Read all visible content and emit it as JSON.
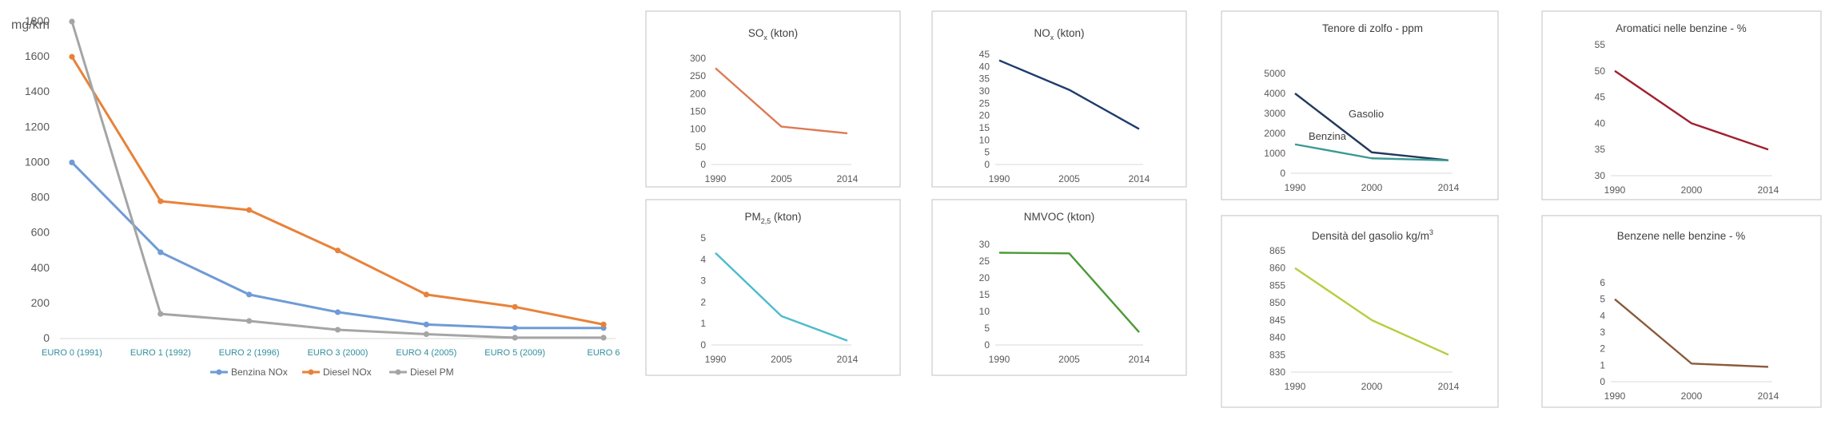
{
  "charts": [
    {
      "id": "euro-limits",
      "type": "line",
      "ylabel": "mg/km",
      "categories": [
        "EURO 0 (1991)",
        "EURO 1 (1992)",
        "EURO 2 (1996)",
        "EURO 3 (2000)",
        "EURO 4 (2005)",
        "EURO 5 (2009)",
        "EURO 6"
      ],
      "ylim": [
        0,
        1800
      ],
      "yticks": [
        0,
        200,
        400,
        600,
        800,
        1000,
        1200,
        1400,
        1600,
        1800
      ],
      "grid": false,
      "legend": "bottom",
      "series": [
        {
          "name": "Benzina NOx",
          "color": "#6f9bd6",
          "values": [
            1000,
            490,
            250,
            150,
            80,
            60,
            60
          ]
        },
        {
          "name": "Diesel NOx",
          "color": "#e8823a",
          "values": [
            1600,
            780,
            730,
            500,
            250,
            180,
            80
          ]
        },
        {
          "name": "Diesel PM",
          "color": "#a5a5a5",
          "values": [
            1800,
            140,
            100,
            50,
            25,
            5,
            5
          ]
        }
      ]
    },
    {
      "id": "sox",
      "type": "line",
      "title": "SO",
      "title_sub": "x",
      "title_suffix": " (kton)",
      "categories": [
        "1990",
        "2005",
        "2014"
      ],
      "ylim": [
        0,
        300
      ],
      "yticks": [
        0,
        50,
        100,
        150,
        200,
        250,
        300
      ],
      "series": [
        {
          "name": "",
          "color": "#dd7a55",
          "values": [
            272,
            107,
            88
          ]
        }
      ]
    },
    {
      "id": "nox",
      "type": "line",
      "title": "NO",
      "title_sub": "x",
      "title_suffix": " (kton)",
      "categories": [
        "1990",
        "2005",
        "2014"
      ],
      "ylim": [
        0,
        45
      ],
      "yticks": [
        0,
        5,
        10,
        15,
        20,
        25,
        30,
        35,
        40,
        45
      ],
      "series": [
        {
          "name": "",
          "color": "#1f3c6e",
          "values": [
            42.5,
            30.5,
            14.5
          ]
        }
      ]
    },
    {
      "id": "zolfo",
      "type": "line",
      "title": "Tenore di zolfo - ppm",
      "categories": [
        "1990",
        "2000",
        "2014"
      ],
      "ylim": [
        0,
        5000
      ],
      "yticks": [
        0,
        1000,
        2000,
        3000,
        4000,
        5000
      ],
      "series": [
        {
          "name": "Gasolio",
          "color": "#23395d",
          "values": [
            4000,
            1050,
            650
          ]
        },
        {
          "name": "Benzina",
          "color": "#3a9a94",
          "values": [
            1450,
            750,
            650
          ]
        }
      ]
    },
    {
      "id": "aromatici",
      "type": "line",
      "title": "Aromatici nelle benzine - %",
      "categories": [
        "1990",
        "2000",
        "2014"
      ],
      "ylim": [
        30,
        55
      ],
      "yticks": [
        30,
        35,
        40,
        45,
        50,
        55
      ],
      "series": [
        {
          "name": "",
          "color": "#a0202e",
          "values": [
            50,
            40,
            35
          ]
        }
      ]
    },
    {
      "id": "pm",
      "type": "line",
      "title": "PM",
      "title_sub": "2,5",
      "title_suffix": " (kton)",
      "categories": [
        "1990",
        "2005",
        "2014"
      ],
      "ylim": [
        0,
        5
      ],
      "yticks": [
        0,
        1,
        2,
        3,
        4,
        5
      ],
      "series": [
        {
          "name": "",
          "color": "#4bbccb",
          "values": [
            4.3,
            1.35,
            0.2
          ]
        }
      ]
    },
    {
      "id": "nmvoc",
      "type": "line",
      "title": "NMVOC (kton)",
      "categories": [
        "1990",
        "2005",
        "2014"
      ],
      "ylim": [
        0,
        30
      ],
      "yticks": [
        0,
        5,
        10,
        15,
        20,
        25,
        30
      ],
      "series": [
        {
          "name": "",
          "color": "#4a9a35",
          "values": [
            27.5,
            27.3,
            3.8
          ]
        }
      ]
    },
    {
      "id": "densita",
      "type": "line",
      "title": "Densità del gasolio kg/m",
      "title_sup": "3",
      "categories": [
        "1990",
        "2000",
        "2014"
      ],
      "ylim": [
        830,
        865
      ],
      "yticks": [
        830,
        835,
        840,
        845,
        850,
        855,
        860,
        865
      ],
      "series": [
        {
          "name": "",
          "color": "#b6ce3e",
          "values": [
            860,
            845,
            835
          ]
        }
      ]
    },
    {
      "id": "benzene",
      "type": "line",
      "title": "Benzene nelle benzine - %",
      "categories": [
        "1990",
        "2000",
        "2014"
      ],
      "ylim": [
        0,
        6
      ],
      "yticks": [
        0,
        1,
        2,
        3,
        4,
        5,
        6
      ],
      "series": [
        {
          "name": "",
          "color": "#8a5a3a",
          "values": [
            5,
            1.1,
            0.9
          ]
        }
      ]
    }
  ]
}
